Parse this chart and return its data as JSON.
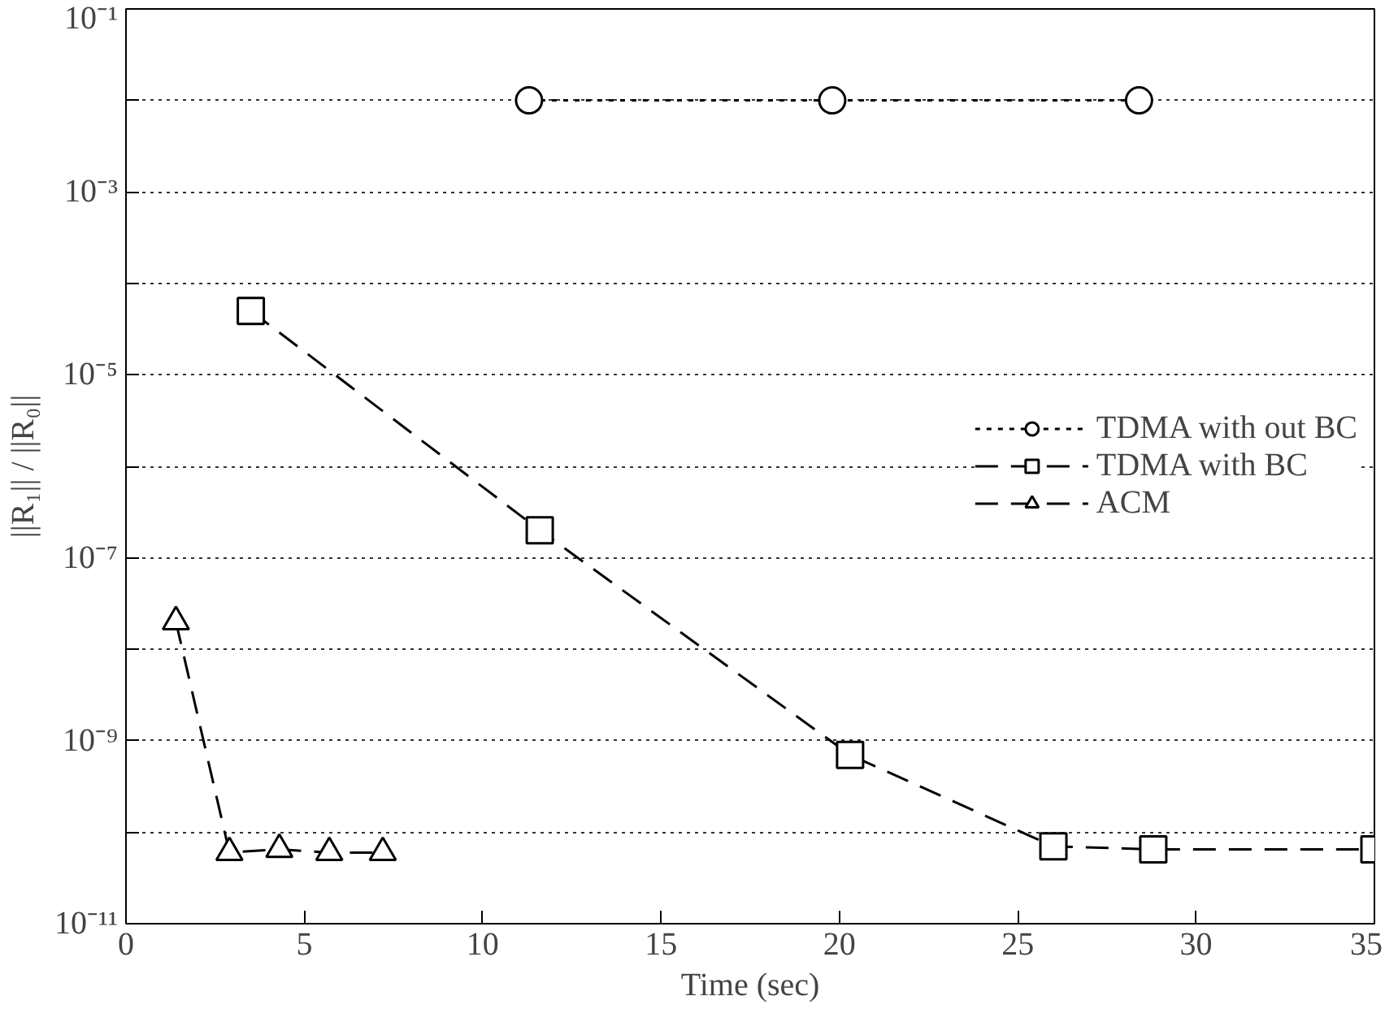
{
  "chart_data": {
    "type": "line",
    "xlabel": "Time (sec)",
    "ylabel": "||R₁|| / ||R₀||",
    "log": "y",
    "grid": "y",
    "legend": "right",
    "xlim": [
      0,
      35
    ],
    "xticks": [
      0,
      5,
      10,
      15,
      20,
      25,
      30,
      35
    ],
    "ylim": [
      1e-11,
      0.1
    ],
    "yticks": [
      {
        "value": 1e-11,
        "label": "10⁻¹¹"
      },
      {
        "value": 1e-10,
        "label": null
      },
      {
        "value": 1e-09,
        "label": "10⁻⁹"
      },
      {
        "value": 1e-08,
        "label": null
      },
      {
        "value": 1e-07,
        "label": "10⁻⁷"
      },
      {
        "value": 1e-06,
        "label": null
      },
      {
        "value": 1e-05,
        "label": "10⁻⁵"
      },
      {
        "value": 0.0001,
        "label": null
      },
      {
        "value": 0.001,
        "label": "10⁻³"
      },
      {
        "value": 0.01,
        "label": null
      },
      {
        "value": 0.1,
        "label": "10⁻¹"
      }
    ],
    "series": [
      {
        "name": "TDMA with out BC",
        "color": "#000000",
        "marker": "circle",
        "line_style": "dotted",
        "x": [
          11.3,
          19.8,
          28.4
        ],
        "values": [
          0.01,
          0.01,
          0.01
        ]
      },
      {
        "name": "TDMA with BC",
        "color": "#000000",
        "marker": "square",
        "line_style": "dashed",
        "x": [
          3.5,
          11.6,
          20.3,
          26,
          28.8,
          35
        ],
        "values": [
          5e-05,
          2e-07,
          7e-10,
          7e-11,
          6.5e-11,
          6.5e-11
        ]
      },
      {
        "name": "ACM",
        "color": "#000000",
        "marker": "triangle",
        "line_style": "dashed",
        "x": [
          1.4,
          2.9,
          4.3,
          5.7,
          7.2
        ],
        "values": [
          2e-08,
          6e-11,
          6.5e-11,
          6e-11,
          6e-11
        ]
      }
    ]
  }
}
